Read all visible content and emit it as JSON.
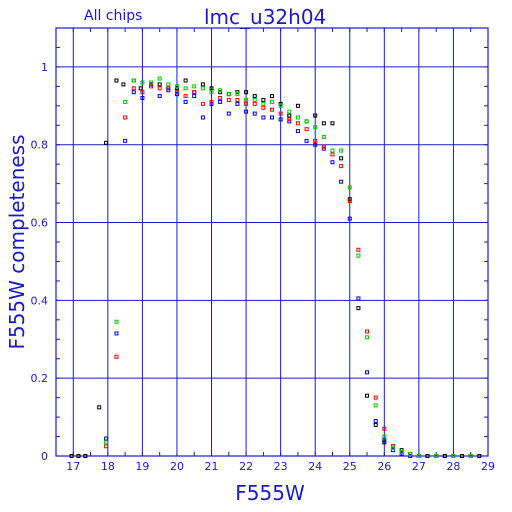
{
  "chart_data": {
    "type": "scatter",
    "title": "lmc_u32h04",
    "subtitle": "All chips",
    "xlabel": "F555W",
    "ylabel": "F555W completeness",
    "xlim": [
      16.5,
      29
    ],
    "ylim": [
      0,
      1.1
    ],
    "xticks": [
      "17",
      "18",
      "19",
      "20",
      "21",
      "22",
      "23",
      "24",
      "25",
      "26",
      "27",
      "28",
      "29"
    ],
    "yticks": [
      "0",
      "0.2",
      "0.4",
      "0.6",
      "0.8",
      "1"
    ],
    "grid": true,
    "colors": {
      "axis": "#1a1acd",
      "black": "#000000",
      "blue": "#0000ff",
      "red": "#ff0000",
      "green": "#00cc00"
    },
    "series": [
      {
        "color": "#000000",
        "points": [
          [
            16.95,
            0.0
          ],
          [
            17.15,
            0.0
          ],
          [
            17.35,
            0.0
          ],
          [
            17.75,
            0.125
          ],
          [
            17.95,
            0.805
          ],
          [
            18.25,
            0.965
          ],
          [
            18.45,
            0.955
          ],
          [
            18.75,
            0.965
          ],
          [
            18.95,
            0.945
          ],
          [
            19.25,
            0.955
          ],
          [
            19.5,
            0.955
          ],
          [
            19.75,
            0.945
          ],
          [
            20.0,
            0.945
          ],
          [
            20.25,
            0.965
          ],
          [
            20.5,
            0.935
          ],
          [
            20.75,
            0.955
          ],
          [
            21.0,
            0.945
          ],
          [
            21.25,
            0.935
          ],
          [
            21.5,
            0.93
          ],
          [
            21.75,
            0.935
          ],
          [
            22.0,
            0.935
          ],
          [
            22.25,
            0.925
          ],
          [
            22.5,
            0.915
          ],
          [
            22.75,
            0.925
          ],
          [
            23.0,
            0.905
          ],
          [
            23.25,
            0.875
          ],
          [
            23.5,
            0.9
          ],
          [
            23.75,
            0.86
          ],
          [
            24.0,
            0.875
          ],
          [
            24.25,
            0.855
          ],
          [
            24.5,
            0.855
          ],
          [
            24.75,
            0.765
          ],
          [
            25.0,
            0.66
          ],
          [
            25.25,
            0.38
          ],
          [
            25.5,
            0.155
          ],
          [
            25.75,
            0.08
          ],
          [
            26.0,
            0.035
          ],
          [
            26.25,
            0.025
          ],
          [
            26.5,
            0.015
          ],
          [
            26.75,
            0.005
          ],
          [
            27.0,
            0.0
          ],
          [
            27.25,
            0.0
          ],
          [
            27.5,
            0.0
          ],
          [
            27.75,
            0.0
          ],
          [
            28.0,
            0.0
          ],
          [
            28.25,
            0.0
          ],
          [
            28.5,
            0.0
          ],
          [
            28.75,
            0.0
          ]
        ]
      },
      {
        "color": "#0000ff",
        "points": [
          [
            17.95,
            0.045
          ],
          [
            18.25,
            0.315
          ],
          [
            18.5,
            0.81
          ],
          [
            18.75,
            0.935
          ],
          [
            19.0,
            0.92
          ],
          [
            19.25,
            0.955
          ],
          [
            19.5,
            0.925
          ],
          [
            19.75,
            0.94
          ],
          [
            20.0,
            0.93
          ],
          [
            20.25,
            0.91
          ],
          [
            20.5,
            0.925
          ],
          [
            20.75,
            0.87
          ],
          [
            21.0,
            0.905
          ],
          [
            21.25,
            0.91
          ],
          [
            21.5,
            0.88
          ],
          [
            21.75,
            0.905
          ],
          [
            22.0,
            0.885
          ],
          [
            22.25,
            0.88
          ],
          [
            22.5,
            0.87
          ],
          [
            22.75,
            0.87
          ],
          [
            23.0,
            0.865
          ],
          [
            23.25,
            0.86
          ],
          [
            23.5,
            0.835
          ],
          [
            23.75,
            0.81
          ],
          [
            24.0,
            0.8
          ],
          [
            24.25,
            0.79
          ],
          [
            24.5,
            0.755
          ],
          [
            24.75,
            0.705
          ],
          [
            25.0,
            0.61
          ],
          [
            25.25,
            0.405
          ],
          [
            25.5,
            0.215
          ],
          [
            25.75,
            0.09
          ],
          [
            26.0,
            0.04
          ],
          [
            26.25,
            0.015
          ],
          [
            26.5,
            0.005
          ],
          [
            26.75,
            0.0
          ],
          [
            27.0,
            0.0
          ],
          [
            27.5,
            0.0
          ],
          [
            28.0,
            0.0
          ]
        ]
      },
      {
        "color": "#ff0000",
        "points": [
          [
            17.95,
            0.025
          ],
          [
            18.25,
            0.255
          ],
          [
            18.5,
            0.87
          ],
          [
            18.75,
            0.945
          ],
          [
            19.0,
            0.935
          ],
          [
            19.25,
            0.95
          ],
          [
            19.5,
            0.945
          ],
          [
            19.75,
            0.945
          ],
          [
            20.0,
            0.935
          ],
          [
            20.25,
            0.925
          ],
          [
            20.5,
            0.935
          ],
          [
            20.75,
            0.905
          ],
          [
            21.0,
            0.91
          ],
          [
            21.25,
            0.92
          ],
          [
            21.5,
            0.915
          ],
          [
            21.75,
            0.915
          ],
          [
            22.0,
            0.905
          ],
          [
            22.25,
            0.905
          ],
          [
            22.5,
            0.895
          ],
          [
            22.75,
            0.89
          ],
          [
            23.0,
            0.88
          ],
          [
            23.25,
            0.865
          ],
          [
            23.5,
            0.855
          ],
          [
            23.75,
            0.84
          ],
          [
            24.0,
            0.81
          ],
          [
            24.25,
            0.795
          ],
          [
            24.5,
            0.775
          ],
          [
            24.75,
            0.745
          ],
          [
            25.0,
            0.655
          ],
          [
            25.25,
            0.53
          ],
          [
            25.5,
            0.32
          ],
          [
            25.75,
            0.15
          ],
          [
            26.0,
            0.07
          ],
          [
            26.25,
            0.025
          ],
          [
            26.5,
            0.01
          ],
          [
            26.75,
            0.005
          ],
          [
            27.0,
            0.0
          ],
          [
            27.5,
            0.0
          ],
          [
            28.0,
            0.0
          ],
          [
            28.5,
            0.0
          ]
        ]
      },
      {
        "color": "#00cc00",
        "points": [
          [
            17.95,
            0.035
          ],
          [
            18.25,
            0.345
          ],
          [
            18.5,
            0.91
          ],
          [
            18.75,
            0.965
          ],
          [
            19.0,
            0.96
          ],
          [
            19.25,
            0.96
          ],
          [
            19.5,
            0.97
          ],
          [
            19.75,
            0.955
          ],
          [
            20.0,
            0.95
          ],
          [
            20.25,
            0.945
          ],
          [
            20.5,
            0.95
          ],
          [
            20.75,
            0.945
          ],
          [
            21.0,
            0.935
          ],
          [
            21.25,
            0.94
          ],
          [
            21.5,
            0.93
          ],
          [
            21.75,
            0.93
          ],
          [
            22.0,
            0.915
          ],
          [
            22.25,
            0.915
          ],
          [
            22.5,
            0.905
          ],
          [
            22.75,
            0.91
          ],
          [
            23.0,
            0.9
          ],
          [
            23.25,
            0.885
          ],
          [
            23.5,
            0.87
          ],
          [
            23.75,
            0.86
          ],
          [
            24.0,
            0.845
          ],
          [
            24.25,
            0.82
          ],
          [
            24.5,
            0.785
          ],
          [
            24.75,
            0.785
          ],
          [
            25.0,
            0.69
          ],
          [
            25.25,
            0.515
          ],
          [
            25.5,
            0.305
          ],
          [
            25.75,
            0.13
          ],
          [
            26.0,
            0.05
          ],
          [
            26.25,
            0.02
          ],
          [
            26.5,
            0.01
          ],
          [
            26.75,
            0.005
          ],
          [
            27.0,
            0.0
          ],
          [
            27.5,
            0.0
          ],
          [
            28.0,
            0.0
          ],
          [
            28.5,
            0.0
          ]
        ]
      }
    ]
  }
}
